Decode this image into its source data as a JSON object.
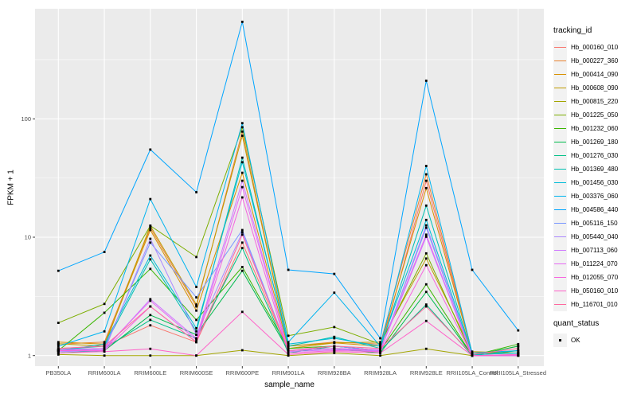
{
  "chart_data": {
    "type": "line",
    "title": "",
    "xlabel": "sample_name",
    "ylabel": "FPKM + 1",
    "y_scale": "log10",
    "ylim": [
      1,
      850
    ],
    "grid": "on",
    "legend_position": "right",
    "y_ticks": [
      {
        "label": "1",
        "value": 1
      },
      {
        "label": "10",
        "value": 10
      },
      {
        "label": "100",
        "value": 100
      }
    ],
    "y_minor_ticks": [
      3.162,
      31.62,
      316.2
    ],
    "categories": [
      "PB350LA",
      "RRIM600LA",
      "RRIM600LE",
      "RRIM600SE",
      "RRIM600PE",
      "RRIM901LA",
      "RRIM928BA",
      "RRIM928LA",
      "RRIM928LE",
      "RRII105LA_Control",
      "RRII105LA_Stressed"
    ],
    "series": [
      {
        "name": "Hb_000160_010",
        "color": "#F8766D",
        "values": [
          1.15,
          1.2,
          1.8,
          1.3,
          9,
          1.1,
          1.15,
          1.1,
          30,
          1.05,
          1.1
        ]
      },
      {
        "name": "Hb_000227_360",
        "color": "#EA8331",
        "values": [
          1.25,
          1.3,
          12,
          2.6,
          78,
          1.2,
          1.3,
          1.25,
          34,
          1.05,
          1.05
        ]
      },
      {
        "name": "Hb_000414_090",
        "color": "#D89000",
        "values": [
          1.3,
          1.25,
          11.5,
          2.4,
          35,
          1.15,
          1.28,
          1.2,
          26,
          1.05,
          1.05
        ]
      },
      {
        "name": "Hb_000608_090",
        "color": "#C09B00",
        "values": [
          1.26,
          1.2,
          12.5,
          2.7,
          72,
          1.2,
          1.28,
          1.3,
          6.6,
          1.08,
          1.05
        ]
      },
      {
        "name": "Hb_000815_220",
        "color": "#A3A500",
        "values": [
          1.02,
          1,
          1,
          1,
          1.11,
          1,
          1.05,
          1,
          1.14,
          1,
          1
        ]
      },
      {
        "name": "Hb_001225_050",
        "color": "#7CAE00",
        "values": [
          1.89,
          2.73,
          12.5,
          6.8,
          85,
          1.47,
          1.74,
          1.25,
          7.3,
          1,
          1.2
        ]
      },
      {
        "name": "Hb_001232_060",
        "color": "#39B600",
        "values": [
          1.1,
          2.3,
          5.4,
          2,
          5.6,
          1.15,
          1.2,
          1.1,
          4,
          1,
          1.25
        ]
      },
      {
        "name": "Hb_001269_180",
        "color": "#00BB4E",
        "values": [
          1.05,
          1.1,
          2.2,
          1.5,
          5.2,
          1.1,
          1.15,
          1.05,
          3.45,
          1,
          1.2
        ]
      },
      {
        "name": "Hb_001276_030",
        "color": "#00C087",
        "values": [
          1.1,
          1.15,
          2,
          1.4,
          8.1,
          1.05,
          1.2,
          1.1,
          2.7,
          1,
          1.1
        ]
      },
      {
        "name": "Hb_001369_480",
        "color": "#00C0B2",
        "values": [
          1.12,
          1.2,
          6.5,
          1.6,
          47,
          1.2,
          1.44,
          1.15,
          18.5,
          1.02,
          1.05
        ]
      },
      {
        "name": "Hb_001456_030",
        "color": "#00BCD8",
        "values": [
          1.1,
          1.25,
          7,
          1.7,
          43,
          1.25,
          1.4,
          1.2,
          14,
          1.02,
          1.05
        ]
      },
      {
        "name": "Hb_003376_060",
        "color": "#00B4EF",
        "values": [
          1.2,
          1.6,
          21,
          3.8,
          92,
          1.3,
          3.4,
          1.2,
          40,
          1.05,
          1.1
        ]
      },
      {
        "name": "Hb_004586_440",
        "color": "#00A5FF",
        "values": [
          5.2,
          7.5,
          55,
          24,
          660,
          5.3,
          4.9,
          1.4,
          210,
          5.3,
          1.63
        ]
      },
      {
        "name": "Hb_005116_150",
        "color": "#7997FF",
        "values": [
          1.1,
          1.15,
          9,
          3.1,
          11.5,
          1.1,
          1.2,
          1.1,
          12,
          1,
          1
        ]
      },
      {
        "name": "Hb_005440_040",
        "color": "#AC88FF",
        "values": [
          1.08,
          1.1,
          9.7,
          1.5,
          11,
          1.1,
          1.15,
          1.08,
          12.6,
          1,
          1
        ]
      },
      {
        "name": "Hb_007113_060",
        "color": "#CF78FF",
        "values": [
          1.1,
          1.12,
          3,
          1.4,
          30,
          1.08,
          1.12,
          1.1,
          10.1,
          1,
          1
        ]
      },
      {
        "name": "Hb_011224_070",
        "color": "#E76BF3",
        "values": [
          1.12,
          1.15,
          2.9,
          1.35,
          26.5,
          1.1,
          1.15,
          1.12,
          10.5,
          1,
          1.02
        ]
      },
      {
        "name": "Hb_012055_070",
        "color": "#F763DF",
        "values": [
          1.1,
          1.1,
          2.6,
          1.3,
          21.7,
          1.05,
          1.1,
          1.08,
          5.8,
          1,
          1
        ]
      },
      {
        "name": "Hb_050160_010",
        "color": "#FF61C9",
        "values": [
          1.05,
          1.08,
          1.14,
          1,
          2.34,
          1.02,
          1.08,
          1.05,
          1.96,
          1,
          1.02
        ]
      },
      {
        "name": "Hb_116701_010",
        "color": "#FF689E",
        "values": [
          1.15,
          1.2,
          2.6,
          1.3,
          10.5,
          1.1,
          1.2,
          1.15,
          2.6,
          1.02,
          1.15
        ]
      }
    ],
    "line_legend_title": "tracking_id",
    "point_legend_title": "quant_status",
    "point_legend_items": [
      {
        "label": "OK",
        "color": "#000000"
      }
    ]
  },
  "style_colors": {
    "panel_background": "#EBEBEB",
    "gridline": "#FFFFFF",
    "tick_label": "#4D4D4D",
    "tick_mark": "#333333",
    "point": "#000000"
  }
}
